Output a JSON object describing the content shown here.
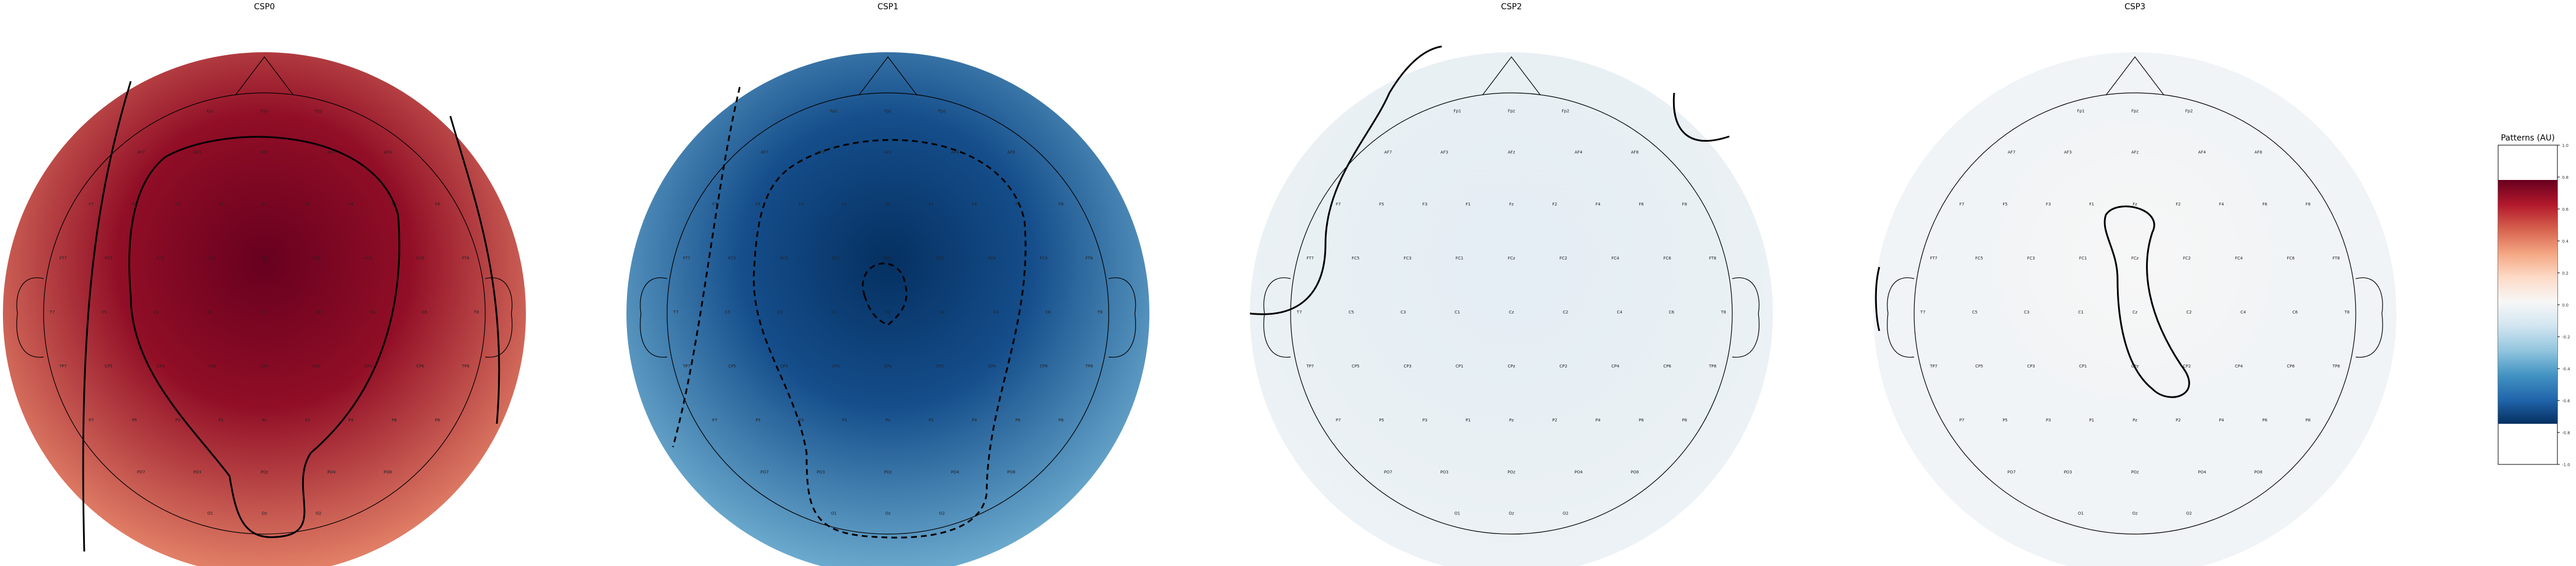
{
  "chart_data": {
    "type": "heatmap",
    "panels": [
      {
        "title": "CSP0",
        "fill_value": 0.55,
        "inner_value": 0.95,
        "contour": "solid"
      },
      {
        "title": "CSP1",
        "fill_value": -0.55,
        "inner_value": -0.95,
        "contour": "dashed"
      },
      {
        "title": "CSP2",
        "fill_value": -0.06,
        "inner_value": -0.08,
        "contour": "solid"
      },
      {
        "title": "CSP3",
        "fill_value": -0.04,
        "inner_value": 0.0,
        "contour": "solid"
      }
    ],
    "colorbar": {
      "label": "Patterns (AU)",
      "colormap": "RdBu_r",
      "vmin": -0.8,
      "vmax": 0.8,
      "ticks": [
        "1.0",
        "0.8",
        "0.6",
        "0.4",
        "0.2",
        "0.0",
        "-0.2",
        "-0.4",
        "-0.6",
        "-0.8",
        "-1.0"
      ]
    },
    "electrodes": [
      "Fp1",
      "Fpz",
      "Fp2",
      "AF7",
      "AF3",
      "AFz",
      "AF4",
      "AF8",
      "F7",
      "F5",
      "F3",
      "F1",
      "Fz",
      "F2",
      "F4",
      "F6",
      "F8",
      "FT7",
      "FC5",
      "FC3",
      "FC1",
      "FCz",
      "FC2",
      "FC4",
      "FC6",
      "FT8",
      "T7",
      "C5",
      "C3",
      "C1",
      "Cz",
      "C2",
      "C4",
      "C6",
      "T8",
      "TP7",
      "CP5",
      "CP3",
      "CP1",
      "CPz",
      "CP2",
      "CP4",
      "CP6",
      "TP8",
      "P7",
      "P5",
      "P3",
      "P1",
      "Pz",
      "P2",
      "P4",
      "P6",
      "P8",
      "PO7",
      "PO3",
      "POz",
      "PO4",
      "PO8",
      "O1",
      "Oz",
      "O2"
    ]
  }
}
